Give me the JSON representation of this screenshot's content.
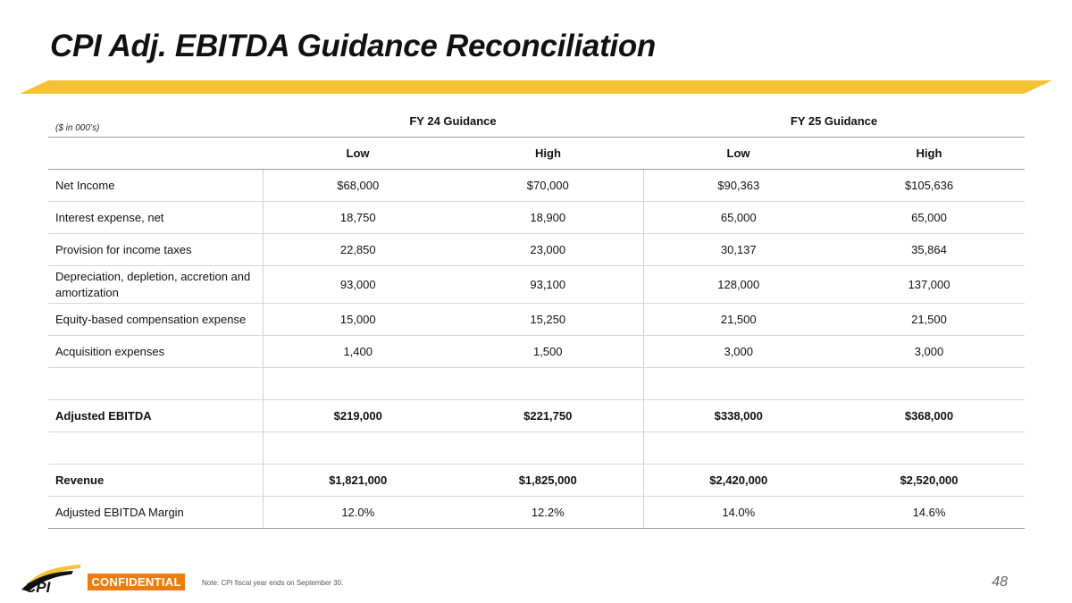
{
  "slide": {
    "title": "CPI Adj. EBITDA Guidance Reconciliation",
    "units_note": "($ in 000’s)",
    "confidential": "CONFIDENTIAL",
    "footnote": "Note: CPI fiscal year ends on September 30.",
    "page_number": "48",
    "logo_text": "CPI"
  },
  "colors": {
    "accent_bar": "#F7C135",
    "confidential_bg": "#EE7D10"
  },
  "table": {
    "group_headers": [
      "FY 24 Guidance",
      "FY 25 Guidance"
    ],
    "sub_headers": [
      "Low",
      "High",
      "Low",
      "High"
    ],
    "rows": [
      {
        "label": "Net Income",
        "values": [
          "$68,000",
          "$70,000",
          "$90,363",
          "$105,636"
        ]
      },
      {
        "label": "Interest expense, net",
        "values": [
          "18,750",
          "18,900",
          "65,000",
          "65,000"
        ]
      },
      {
        "label": "Provision for income taxes",
        "values": [
          "22,850",
          "23,000",
          "30,137",
          "35,864"
        ]
      },
      {
        "label": "Depreciation, depletion, accretion and amortization",
        "values": [
          "93,000",
          "93,100",
          "128,000",
          "137,000"
        ]
      },
      {
        "label": "Equity-based compensation expense",
        "values": [
          "15,000",
          "15,250",
          "21,500",
          "21,500"
        ]
      },
      {
        "label": "Acquisition expenses",
        "values": [
          "1,400",
          "1,500",
          "3,000",
          "3,000"
        ]
      },
      {
        "label": "",
        "values": [
          "",
          "",
          "",
          ""
        ]
      },
      {
        "label": "Adjusted EBITDA",
        "values": [
          "$219,000",
          "$221,750",
          "$338,000",
          "$368,000"
        ]
      },
      {
        "label": "",
        "values": [
          "",
          "",
          "",
          ""
        ]
      },
      {
        "label": "Revenue",
        "values": [
          "$1,821,000",
          "$1,825,000",
          "$2,420,000",
          "$2,520,000"
        ]
      },
      {
        "label": "Adjusted EBITDA Margin",
        "values": [
          "12.0%",
          "12.2%",
          "14.0%",
          "14.6%"
        ]
      }
    ]
  }
}
